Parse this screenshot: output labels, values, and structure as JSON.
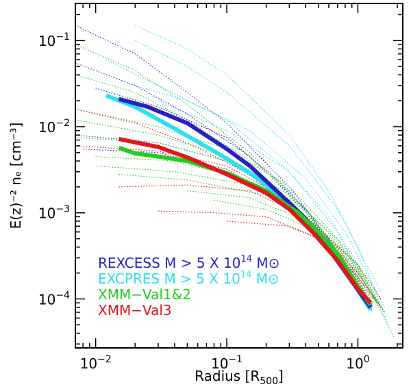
{
  "chart_data": {
    "type": "line",
    "xlabel_main": "Radius [R",
    "xlabel_sub": "500",
    "xlabel_end": "]",
    "ylabel": "E(z)⁻² nₑ [cm⁻³]",
    "xscale": "log",
    "yscale": "log",
    "xlim": [
      0.007,
      2.2
    ],
    "ylim": [
      2.7e-05,
      0.27
    ],
    "x_ticks": [
      {
        "value": 0.01,
        "base": "10",
        "exp": "−2"
      },
      {
        "value": 0.1,
        "base": "10",
        "exp": "−1"
      },
      {
        "value": 1,
        "base": "10",
        "exp": "0"
      }
    ],
    "y_ticks": [
      {
        "value": 0.0001,
        "base": "10",
        "exp": "−4"
      },
      {
        "value": 0.001,
        "base": "10",
        "exp": "−3"
      },
      {
        "value": 0.01,
        "base": "10",
        "exp": "−2"
      },
      {
        "value": 0.1,
        "base": "10",
        "exp": "−1"
      }
    ],
    "legend": [
      {
        "text": "REXCESS M > 5 X 10",
        "sup": "14",
        "tail": " M⊙",
        "color": "#2a1fc4"
      },
      {
        "text": "EXCPRES M > 5 X 10",
        "sup": "14",
        "tail": " M⊙",
        "color": "#2ee0f0"
      },
      {
        "text": "XMM−Val1&2",
        "sup": "",
        "tail": "",
        "color": "#22cc22"
      },
      {
        "text": "XMM−Val3",
        "sup": "",
        "tail": "",
        "color": "#e01818"
      }
    ],
    "series_bold": [
      {
        "color": "#2ee0f0",
        "x": [
          0.012,
          0.02,
          0.04,
          0.08,
          0.15,
          0.3,
          0.5,
          0.8,
          1.25
        ],
        "y": [
          0.023,
          0.017,
          0.0095,
          0.0052,
          0.0029,
          0.0013,
          0.00055,
          0.00021,
          7.5e-05
        ]
      },
      {
        "color": "#2a1fc4",
        "x": [
          0.015,
          0.025,
          0.05,
          0.1,
          0.15,
          0.25,
          0.4,
          0.6,
          0.9,
          1.25
        ],
        "y": [
          0.021,
          0.017,
          0.011,
          0.0055,
          0.0035,
          0.0017,
          0.00085,
          0.00038,
          0.00016,
          8e-05
        ]
      },
      {
        "color": "#22cc22",
        "x": [
          0.015,
          0.02,
          0.03,
          0.05,
          0.1,
          0.2,
          0.35,
          0.5,
          0.7,
          1.0,
          1.25
        ],
        "y": [
          0.0057,
          0.0049,
          0.0045,
          0.004,
          0.0029,
          0.0018,
          0.001,
          0.0006,
          0.00033,
          0.00014,
          8.5e-05
        ]
      },
      {
        "color": "#e01818",
        "x": [
          0.015,
          0.03,
          0.05,
          0.1,
          0.2,
          0.3,
          0.45,
          0.7,
          1.0,
          1.25
        ],
        "y": [
          0.0072,
          0.0058,
          0.0044,
          0.0028,
          0.0017,
          0.0011,
          0.0006,
          0.00028,
          0.00013,
          9e-05
        ]
      }
    ],
    "series_dotted": [
      {
        "color": "#2a1fc4",
        "x": [
          0.007,
          0.02,
          0.05,
          0.1,
          0.3,
          0.6,
          1.2
        ],
        "y": [
          0.15,
          0.07,
          0.025,
          0.011,
          0.002,
          0.0005,
          9e-05
        ]
      },
      {
        "color": "#2a1fc4",
        "x": [
          0.007,
          0.02,
          0.05,
          0.15,
          0.4,
          1.0,
          1.3
        ],
        "y": [
          0.055,
          0.03,
          0.014,
          0.0045,
          0.0011,
          0.00017,
          8e-05
        ]
      },
      {
        "color": "#2a1fc4",
        "x": [
          0.01,
          0.03,
          0.1,
          0.3,
          0.7,
          1.3
        ],
        "y": [
          0.028,
          0.017,
          0.0075,
          0.0018,
          0.00035,
          7e-05
        ]
      },
      {
        "color": "#2a1fc4",
        "x": [
          0.007,
          0.03,
          0.1,
          0.3,
          0.6,
          1.2
        ],
        "y": [
          0.008,
          0.0065,
          0.004,
          0.0014,
          0.00045,
          0.0001
        ]
      },
      {
        "color": "#2a1fc4",
        "x": [
          0.008,
          0.03,
          0.1,
          0.3,
          0.8,
          1.3
        ],
        "y": [
          0.0055,
          0.005,
          0.0032,
          0.0012,
          0.00025,
          8e-05
        ]
      },
      {
        "color": "#2ee0f0",
        "x": [
          0.02,
          0.05,
          0.1,
          0.3,
          0.6,
          1.0,
          1.8
        ],
        "y": [
          0.15,
          0.08,
          0.04,
          0.008,
          0.0018,
          0.0004,
          4e-05
        ]
      },
      {
        "color": "#2ee0f0",
        "x": [
          0.02,
          0.05,
          0.1,
          0.3,
          0.7,
          1.5
        ],
        "y": [
          0.1,
          0.05,
          0.025,
          0.006,
          0.0011,
          0.00012
        ]
      },
      {
        "color": "#2ee0f0",
        "x": [
          0.012,
          0.03,
          0.1,
          0.3,
          0.7,
          1.3
        ],
        "y": [
          0.06,
          0.03,
          0.012,
          0.003,
          0.0006,
          0.0001
        ]
      },
      {
        "color": "#2ee0f0",
        "x": [
          0.02,
          0.05,
          0.15,
          0.4,
          0.8,
          1.6
        ],
        "y": [
          0.03,
          0.02,
          0.009,
          0.0025,
          0.0006,
          8e-05
        ]
      },
      {
        "color": "#2ee0f0",
        "x": [
          0.03,
          0.1,
          0.3,
          0.6,
          1.0,
          1.9
        ],
        "y": [
          0.02,
          0.009,
          0.003,
          0.0009,
          0.00025,
          3.5e-05
        ]
      },
      {
        "color": "#22cc22",
        "x": [
          0.007,
          0.02,
          0.05,
          0.15,
          0.4,
          0.9,
          1.3
        ],
        "y": [
          0.09,
          0.045,
          0.018,
          0.005,
          0.0011,
          0.00022,
          9e-05
        ]
      },
      {
        "color": "#22cc22",
        "x": [
          0.007,
          0.02,
          0.05,
          0.2,
          0.5,
          1.2
        ],
        "y": [
          0.04,
          0.025,
          0.012,
          0.003,
          0.0007,
          0.00011
        ]
      },
      {
        "color": "#22cc22",
        "x": [
          0.007,
          0.03,
          0.1,
          0.3,
          0.7,
          1.4
        ],
        "y": [
          0.016,
          0.01,
          0.0055,
          0.002,
          0.0005,
          9e-05
        ]
      },
      {
        "color": "#22cc22",
        "x": [
          0.007,
          0.03,
          0.1,
          0.3,
          0.8,
          1.5
        ],
        "y": [
          0.012,
          0.008,
          0.0045,
          0.0016,
          0.0004,
          8e-05
        ]
      },
      {
        "color": "#22cc22",
        "x": [
          0.007,
          0.03,
          0.1,
          0.4,
          1.0,
          1.6
        ],
        "y": [
          0.0075,
          0.0065,
          0.004,
          0.0011,
          0.00025,
          7e-05
        ]
      },
      {
        "color": "#22cc22",
        "x": [
          0.01,
          0.04,
          0.1,
          0.3,
          0.8,
          1.5
        ],
        "y": [
          0.0045,
          0.004,
          0.0028,
          0.0012,
          0.00033,
          8e-05
        ]
      },
      {
        "color": "#22cc22",
        "x": [
          0.01,
          0.04,
          0.15,
          0.4,
          1.0,
          1.6
        ],
        "y": [
          0.0035,
          0.003,
          0.0021,
          0.0009,
          0.00022,
          6e-05
        ]
      },
      {
        "color": "#22cc22",
        "x": [
          0.015,
          0.05,
          0.2,
          0.5,
          1.0,
          1.5
        ],
        "y": [
          0.0028,
          0.0024,
          0.0016,
          0.0007,
          0.00024,
          8e-05
        ]
      },
      {
        "color": "#22cc22",
        "x": [
          0.05,
          0.15,
          0.4,
          0.8,
          1.4
        ],
        "y": [
          0.0018,
          0.0015,
          0.0008,
          0.0003,
          9e-05
        ]
      },
      {
        "color": "#22cc22",
        "x": [
          0.08,
          0.2,
          0.5,
          1.0,
          1.5
        ],
        "y": [
          0.0014,
          0.0011,
          0.0006,
          0.0002,
          8e-05
        ]
      },
      {
        "color": "#e01818",
        "x": [
          0.007,
          0.02,
          0.05,
          0.15,
          0.4,
          1.0,
          1.3
        ],
        "y": [
          0.016,
          0.011,
          0.0065,
          0.0028,
          0.0009,
          0.00016,
          8e-05
        ]
      },
      {
        "color": "#e01818",
        "x": [
          0.007,
          0.03,
          0.1,
          0.3,
          0.7,
          1.3
        ],
        "y": [
          0.006,
          0.0052,
          0.0035,
          0.0014,
          0.0004,
          0.0001
        ]
      },
      {
        "color": "#e01818",
        "x": [
          0.015,
          0.05,
          0.15,
          0.4,
          1.0,
          1.5
        ],
        "y": [
          0.002,
          0.0021,
          0.0018,
          0.0009,
          0.00025,
          0.0001
        ]
      },
      {
        "color": "#e01818",
        "x": [
          0.03,
          0.08,
          0.2,
          0.5,
          1.0,
          1.6
        ],
        "y": [
          0.00105,
          0.001,
          0.0009,
          0.0005,
          0.00018,
          7e-05
        ]
      },
      {
        "color": "#e01818",
        "x": [
          0.1,
          0.3,
          0.6,
          1.0,
          1.5
        ],
        "y": [
          0.0008,
          0.0007,
          0.00045,
          0.0002,
          8e-05
        ]
      }
    ]
  }
}
